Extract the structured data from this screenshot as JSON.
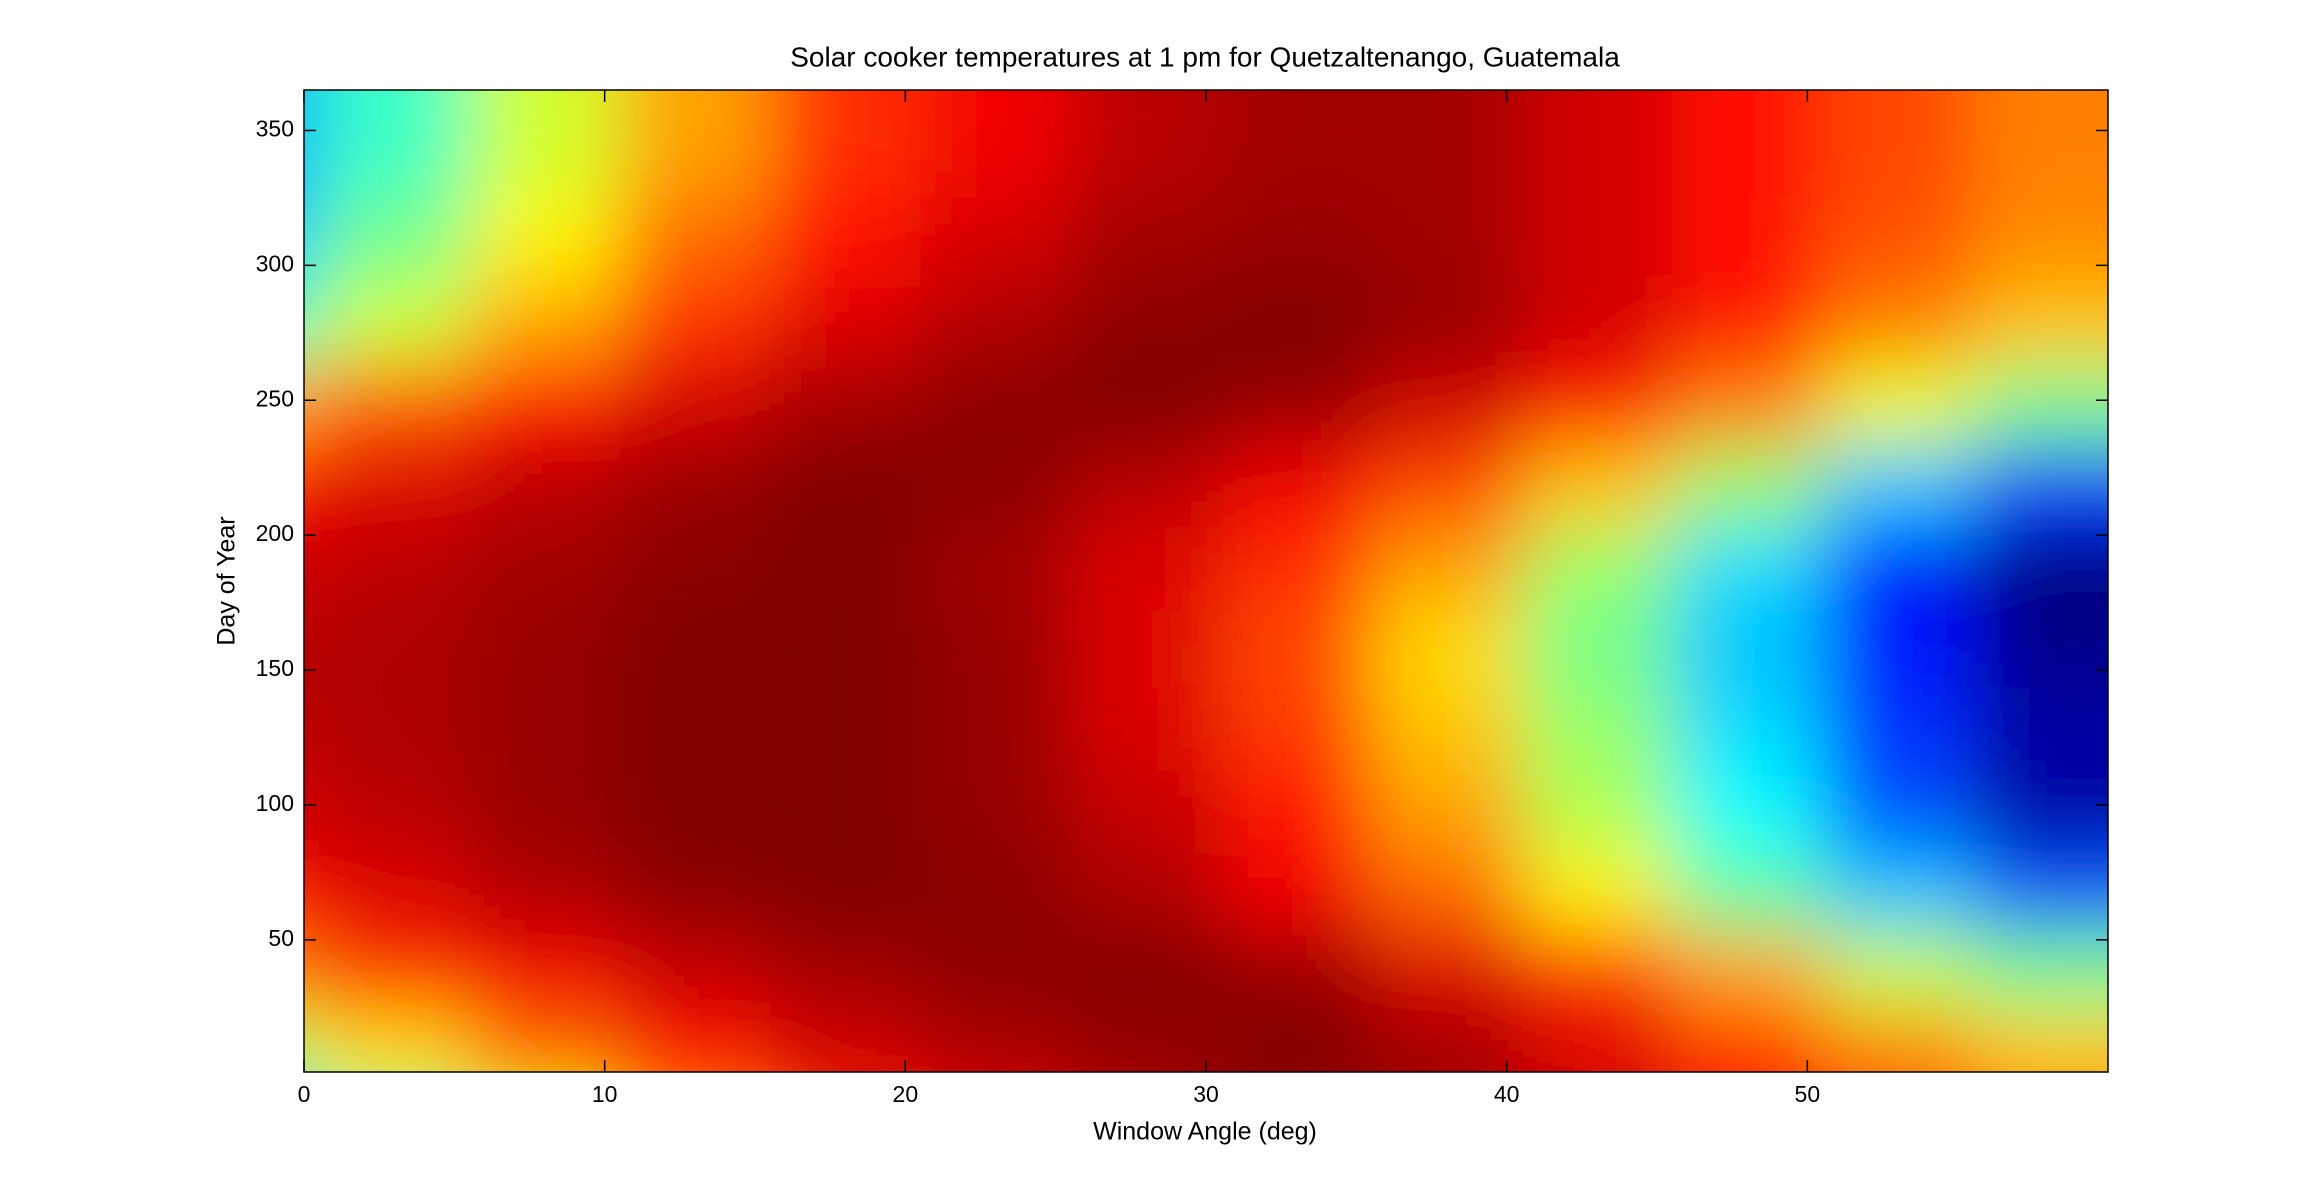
{
  "chart_data": {
    "type": "heatmap",
    "title": "Solar cooker temperatures at 1 pm for Quetzaltenango, Guatemala",
    "x_label": "Window Angle (deg)",
    "y_label": "Day of Year",
    "colormap": "jet",
    "x": [
      0,
      5,
      10,
      15,
      20,
      25,
      30,
      35,
      40,
      45,
      50,
      55,
      60
    ],
    "y": [
      1,
      30,
      60,
      90,
      120,
      150,
      180,
      210,
      240,
      270,
      300,
      330,
      365
    ],
    "z": [
      [
        0.4,
        0.55,
        0.65,
        0.78,
        0.86,
        0.92,
        0.96,
        0.98,
        0.97,
        0.93,
        0.88,
        0.82,
        0.78
      ],
      [
        0.6,
        0.7,
        0.8,
        0.88,
        0.93,
        0.96,
        0.98,
        1,
        0.97,
        0.92,
        0.85,
        0.78,
        0.72
      ],
      [
        0.78,
        0.85,
        0.9,
        0.94,
        0.97,
        0.99,
        1,
        0.98,
        0.92,
        0.85,
        0.75,
        0.62,
        0.55
      ],
      [
        0.88,
        0.92,
        0.96,
        0.99,
        1,
        0.99,
        0.96,
        0.9,
        0.8,
        0.68,
        0.53,
        0.4,
        0.3
      ],
      [
        0.93,
        0.95,
        0.98,
        1,
        1,
        0.98,
        0.94,
        0.87,
        0.75,
        0.6,
        0.45,
        0.3,
        0.15
      ],
      [
        0.94,
        0.96,
        0.98,
        1,
        1,
        0.98,
        0.92,
        0.84,
        0.72,
        0.58,
        0.42,
        0.27,
        0.15
      ],
      [
        0.95,
        0.96,
        0.98,
        1,
        1,
        0.98,
        0.92,
        0.83,
        0.7,
        0.55,
        0.4,
        0.25,
        0.13
      ],
      [
        0.93,
        0.95,
        0.97,
        0.99,
        1,
        0.97,
        0.92,
        0.85,
        0.75,
        0.58,
        0.42,
        0.25,
        0.12
      ],
      [
        0.88,
        0.92,
        0.95,
        0.98,
        1,
        0.99,
        0.95,
        0.9,
        0.83,
        0.72,
        0.58,
        0.4,
        0.28
      ],
      [
        0.75,
        0.82,
        0.88,
        0.93,
        0.97,
        0.99,
        1,
        0.98,
        0.93,
        0.87,
        0.78,
        0.65,
        0.55
      ],
      [
        0.5,
        0.63,
        0.75,
        0.85,
        0.92,
        0.96,
        0.99,
        1,
        0.98,
        0.93,
        0.87,
        0.78,
        0.72
      ],
      [
        0.4,
        0.55,
        0.68,
        0.8,
        0.88,
        0.93,
        0.97,
        0.98,
        0.97,
        0.93,
        0.88,
        0.82,
        0.77
      ],
      [
        0.38,
        0.5,
        0.63,
        0.75,
        0.85,
        0.9,
        0.95,
        0.97,
        0.97,
        0.93,
        0.88,
        0.83,
        0.78
      ]
    ],
    "xlim": [
      0,
      60
    ],
    "ylim": [
      1,
      365
    ],
    "xticks": [
      0,
      10,
      20,
      30,
      40,
      50
    ],
    "yticks": [
      50,
      100,
      150,
      200,
      250,
      300,
      350
    ]
  }
}
